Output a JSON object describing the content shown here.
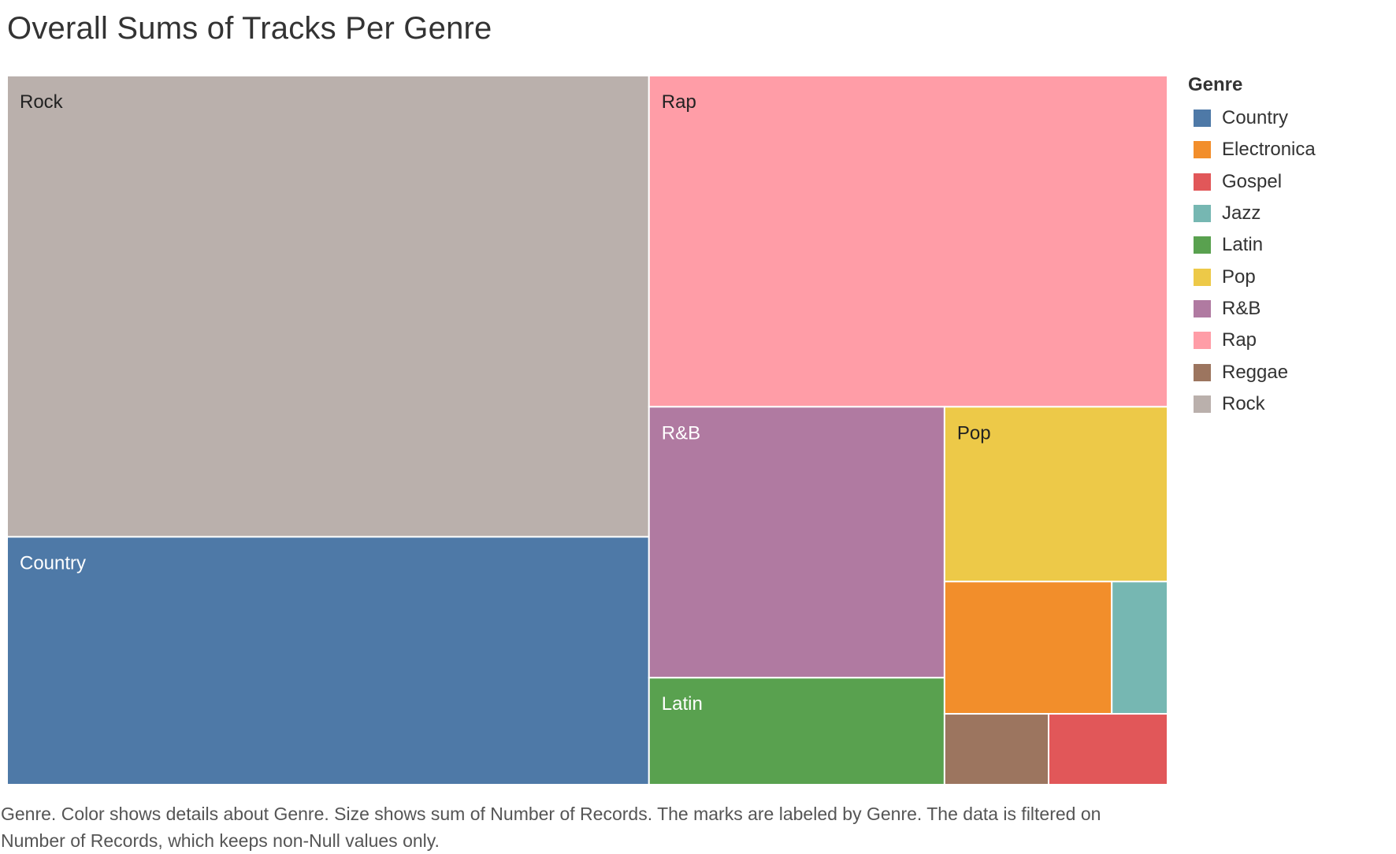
{
  "chart_data": {
    "type": "treemap",
    "title": "Overall Sums of Tracks Per Genre",
    "caption": "Genre.  Color shows details about Genre.  Size shows sum of Number of Records.  The marks are labeled by Genre. The data is filtered on Number of Records, which keeps non-Null values only.",
    "legend": {
      "title": "Genre",
      "placement": "right",
      "items": [
        {
          "label": "Country",
          "color": "#4e79a7"
        },
        {
          "label": "Electronica",
          "color": "#f28e2b"
        },
        {
          "label": "Gospel",
          "color": "#e15759"
        },
        {
          "label": "Jazz",
          "color": "#76b7b2"
        },
        {
          "label": "Latin",
          "color": "#59a14f"
        },
        {
          "label": "Pop",
          "color": "#edc948"
        },
        {
          "label": "R&B",
          "color": "#b07aa1"
        },
        {
          "label": "Rap",
          "color": "#ff9da7"
        },
        {
          "label": "Reggae",
          "color": "#9c755f"
        },
        {
          "label": "Rock",
          "color": "#bab0ac"
        }
      ]
    },
    "categories": [
      "Rock",
      "Country",
      "Rap",
      "R&B",
      "Latin",
      "Pop",
      "Electronica",
      "Jazz",
      "Reggae",
      "Gospel"
    ],
    "values": [
      281,
      151,
      163,
      76,
      30,
      37,
      21,
      7,
      7,
      8
    ],
    "value_measure": "Number of Records",
    "labeled": [
      "Rock",
      "Country",
      "Rap",
      "R&B",
      "Latin",
      "Pop"
    ]
  }
}
